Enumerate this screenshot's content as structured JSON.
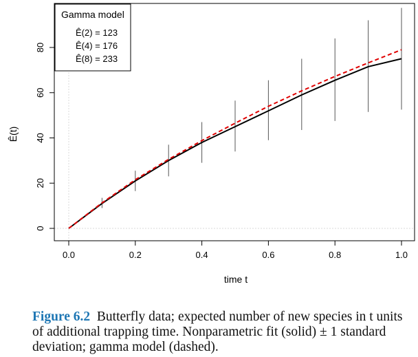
{
  "chart_data": {
    "type": "line",
    "title": "",
    "xlabel": "time t",
    "ylabel": "Ê(t)",
    "xlim": [
      0,
      1
    ],
    "ylim": [
      -2,
      97
    ],
    "x_ticks": [
      "0.0",
      "0.2",
      "0.4",
      "0.6",
      "0.8",
      "1.0"
    ],
    "y_ticks": [
      "0",
      "20",
      "40",
      "60",
      "80"
    ],
    "x": [
      0,
      0.1,
      0.2,
      0.3,
      0.4,
      0.5,
      0.6,
      0.7,
      0.8,
      0.9,
      1.0
    ],
    "series": [
      {
        "name": "Nonparametric fit",
        "style": "solid",
        "color": "#000000",
        "values": [
          0,
          11,
          21,
          30,
          38,
          45,
          52,
          59,
          65.5,
          71.5,
          75
        ]
      },
      {
        "name": "Gamma model",
        "style": "dashed",
        "color": "#e00000",
        "values": [
          0,
          11.3,
          21.5,
          30.5,
          38.8,
          46.5,
          54,
          60.8,
          67.2,
          73.2,
          79
        ]
      }
    ],
    "error_bars": {
      "name": "± 1 standard deviation",
      "lower": [
        0,
        9,
        16.5,
        23,
        29,
        34,
        39,
        43.5,
        47.5,
        51.5,
        52.5
      ],
      "upper": [
        0,
        13.5,
        25.5,
        37,
        47,
        56.5,
        65.5,
        75,
        84,
        92,
        97.5
      ]
    },
    "legend": {
      "title": "Gamma model",
      "position": "top-left",
      "entries": [
        "Ê(2) = 123",
        "Ê(4) = 176",
        "Ê(8) = 233"
      ]
    }
  },
  "caption": {
    "label": "Figure 6.2",
    "text": "Butterfly data; expected number of new species in t units of additional trapping time. Nonparametric fit (solid) ± 1 standard deviation; gamma model (dashed)."
  }
}
